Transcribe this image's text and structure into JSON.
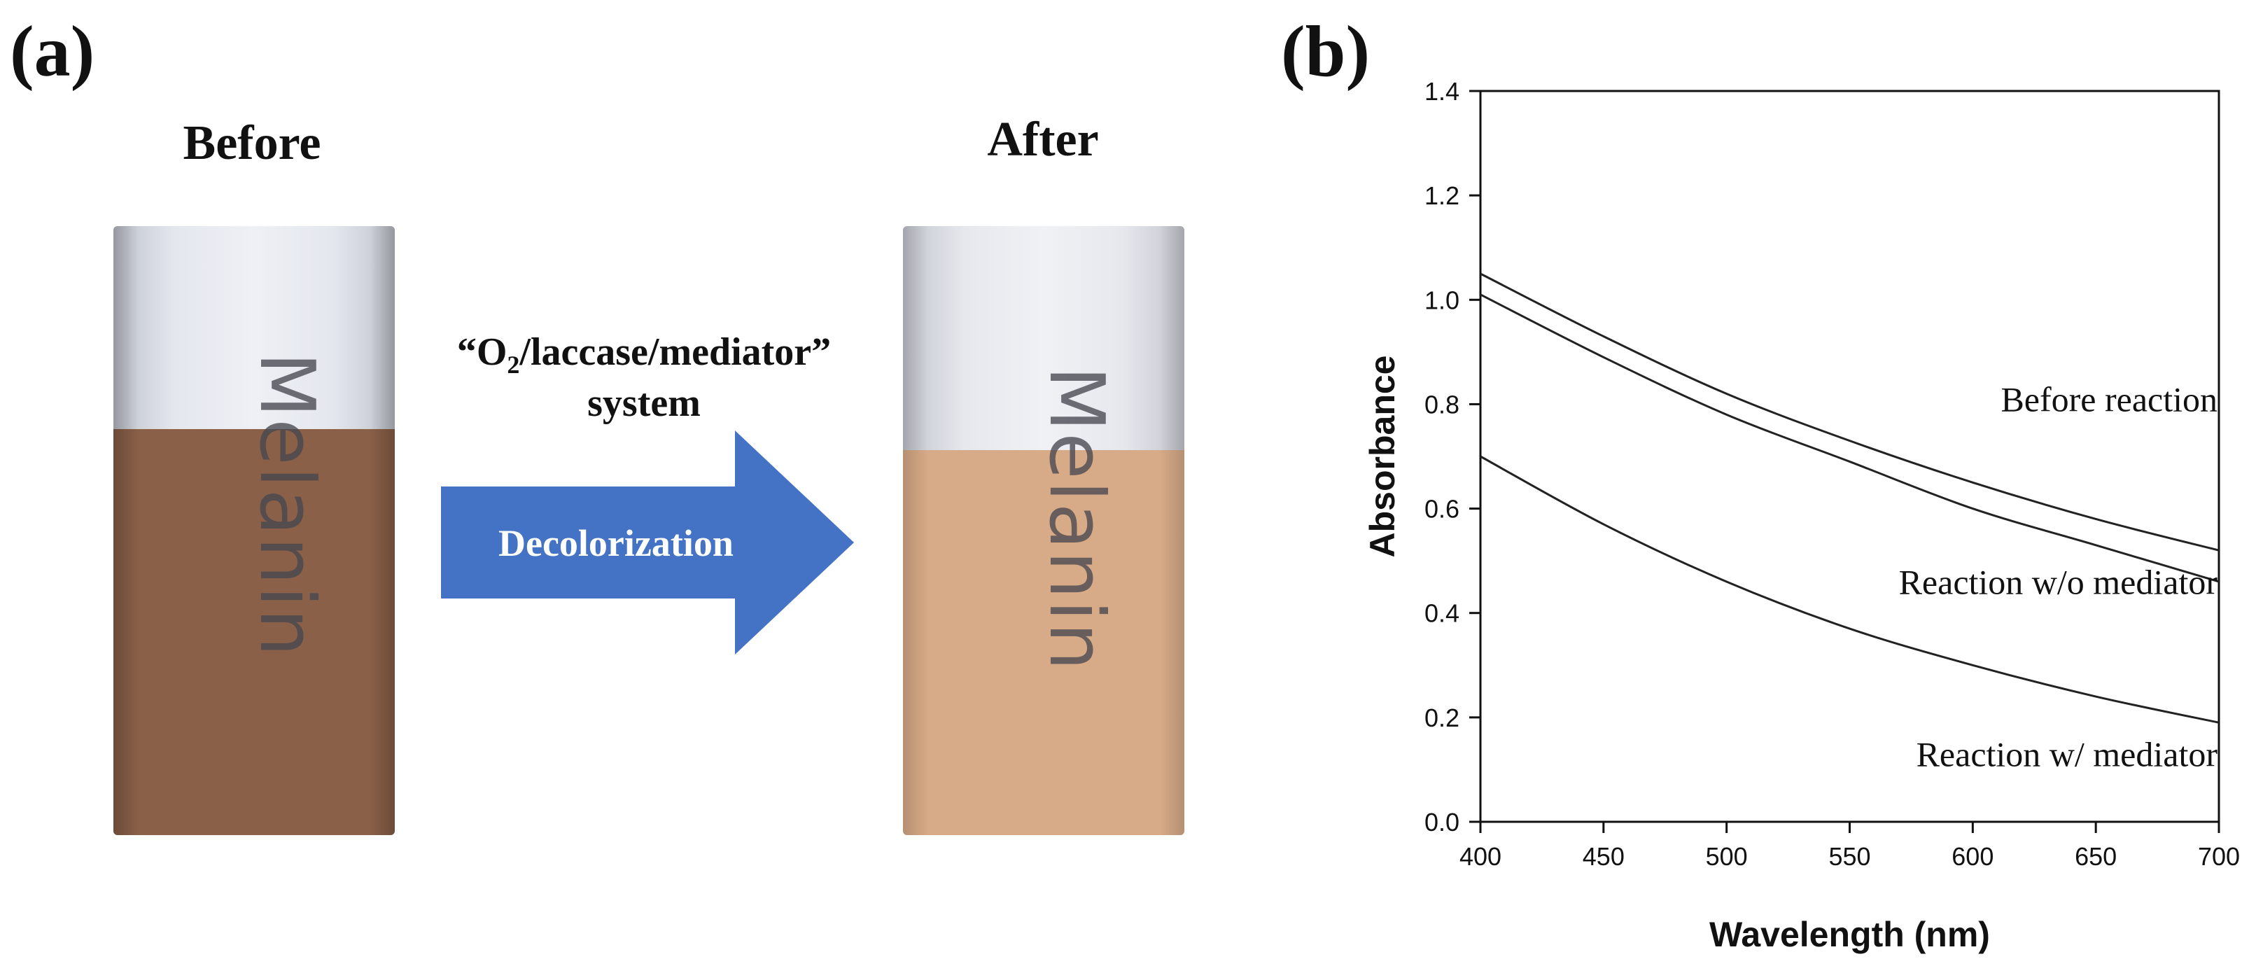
{
  "panel_a": {
    "letter": "(a)",
    "before_label": "Before",
    "after_label": "After",
    "cuvette_text": "Melanin",
    "system_line1_prefix": "“O",
    "system_line1_sub": "2",
    "system_line1_suffix": "/laccase/mediator”",
    "system_line2": "system",
    "arrow_label": "Decolorization",
    "colors": {
      "before_liquid": "#8a6048",
      "after_liquid": "#d8ab88",
      "arrow": "#4472c4",
      "cuvette_top": "#d9dde6"
    }
  },
  "panel_b": {
    "letter": "(b)"
  },
  "chart_data": {
    "type": "line",
    "xlabel": "Wavelength (nm)",
    "ylabel": "Absorbance",
    "xlim": [
      400,
      700
    ],
    "ylim": [
      0.0,
      1.4
    ],
    "xticks": [
      400,
      450,
      500,
      550,
      600,
      650,
      700
    ],
    "yticks": [
      0.0,
      0.2,
      0.4,
      0.6,
      0.8,
      1.0,
      1.2,
      1.4
    ],
    "ytick_labels": [
      "0.0",
      "0.2",
      "0.4",
      "0.6",
      "0.8",
      "1.0",
      "1.2",
      "1.4"
    ],
    "grid": false,
    "line_color": "#222222",
    "x": [
      400,
      450,
      500,
      550,
      600,
      650,
      700
    ],
    "series": [
      {
        "name": "Before reaction",
        "values": [
          1.05,
          0.93,
          0.82,
          0.73,
          0.65,
          0.58,
          0.52
        ]
      },
      {
        "name": "Reaction w/o mediator",
        "values": [
          1.01,
          0.89,
          0.78,
          0.69,
          0.6,
          0.53,
          0.46
        ]
      },
      {
        "name": "Reaction w/ mediator",
        "values": [
          0.7,
          0.57,
          0.46,
          0.37,
          0.3,
          0.24,
          0.19
        ]
      }
    ]
  }
}
